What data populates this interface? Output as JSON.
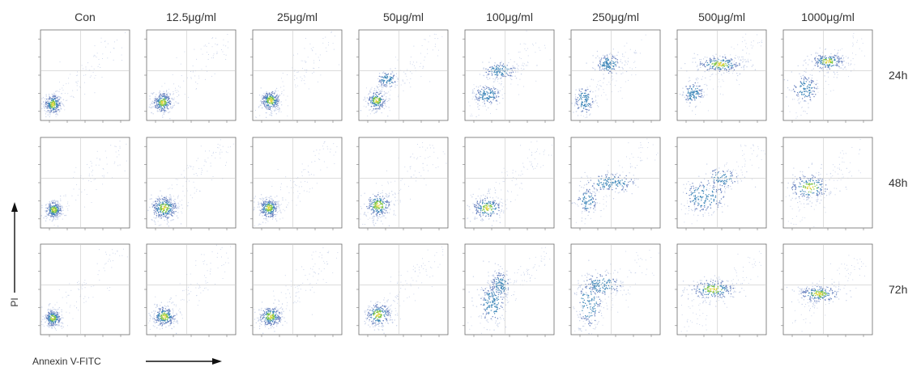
{
  "chart_data": {
    "type": "scatter",
    "plot_kind": "flow-cytometry-density-grid",
    "columns": [
      "Con",
      "12.5μg/ml",
      "25μg/ml",
      "50μg/ml",
      "100μg/ml",
      "250μg/ml",
      "500μg/ml",
      "1000μg/ml"
    ],
    "rows": [
      "24h",
      "48h",
      "72h"
    ],
    "xlabel": "Annexin V-FITC",
    "ylabel": "PI",
    "axis_scale": "log",
    "xlim": [
      1,
      100000
    ],
    "ylim": [
      1,
      100000
    ],
    "tick_values": [
      10,
      100,
      1000,
      10000,
      100000
    ],
    "gate_fraction": [
      0.45,
      0.55
    ],
    "panels": [
      [
        {
          "populations": [
            {
              "x": 0.14,
              "y": 0.18,
              "sx": 0.05,
              "sy": 0.06,
              "w": 1.0
            }
          ],
          "diag": 0.3
        },
        {
          "populations": [
            {
              "x": 0.18,
              "y": 0.2,
              "sx": 0.06,
              "sy": 0.06,
              "w": 1.0
            }
          ],
          "diag": 0.3
        },
        {
          "populations": [
            {
              "x": 0.2,
              "y": 0.22,
              "sx": 0.06,
              "sy": 0.06,
              "w": 1.0
            }
          ],
          "diag": 0.35
        },
        {
          "populations": [
            {
              "x": 0.2,
              "y": 0.22,
              "sx": 0.06,
              "sy": 0.06,
              "w": 0.8
            },
            {
              "x": 0.32,
              "y": 0.45,
              "sx": 0.06,
              "sy": 0.05,
              "w": 0.4
            }
          ],
          "diag": 0.35
        },
        {
          "populations": [
            {
              "x": 0.25,
              "y": 0.28,
              "sx": 0.08,
              "sy": 0.06,
              "w": 0.6
            },
            {
              "x": 0.4,
              "y": 0.55,
              "sx": 0.1,
              "sy": 0.05,
              "w": 0.6
            }
          ],
          "diag": 0.3
        },
        {
          "populations": [
            {
              "x": 0.15,
              "y": 0.22,
              "sx": 0.06,
              "sy": 0.08,
              "w": 0.5
            },
            {
              "x": 0.42,
              "y": 0.62,
              "sx": 0.08,
              "sy": 0.06,
              "w": 0.6
            }
          ],
          "diag": 0.3
        },
        {
          "populations": [
            {
              "x": 0.18,
              "y": 0.3,
              "sx": 0.06,
              "sy": 0.07,
              "w": 0.5
            },
            {
              "x": 0.48,
              "y": 0.62,
              "sx": 0.14,
              "sy": 0.05,
              "w": 0.9
            }
          ],
          "diag": 0.25
        },
        {
          "populations": [
            {
              "x": 0.25,
              "y": 0.35,
              "sx": 0.08,
              "sy": 0.08,
              "w": 0.5
            },
            {
              "x": 0.5,
              "y": 0.65,
              "sx": 0.1,
              "sy": 0.05,
              "w": 0.8
            }
          ],
          "diag": 0.25
        }
      ],
      [
        {
          "populations": [
            {
              "x": 0.15,
              "y": 0.2,
              "sx": 0.05,
              "sy": 0.05,
              "w": 1.0
            }
          ],
          "diag": 0.25
        },
        {
          "populations": [
            {
              "x": 0.2,
              "y": 0.22,
              "sx": 0.08,
              "sy": 0.07,
              "w": 1.2
            }
          ],
          "diag": 0.45
        },
        {
          "populations": [
            {
              "x": 0.18,
              "y": 0.22,
              "sx": 0.06,
              "sy": 0.06,
              "w": 1.0
            }
          ],
          "diag": 0.35
        },
        {
          "populations": [
            {
              "x": 0.22,
              "y": 0.25,
              "sx": 0.08,
              "sy": 0.07,
              "w": 0.9
            }
          ],
          "diag": 0.4
        },
        {
          "populations": [
            {
              "x": 0.25,
              "y": 0.22,
              "sx": 0.09,
              "sy": 0.07,
              "w": 0.8
            }
          ],
          "diag": 0.4
        },
        {
          "populations": [
            {
              "x": 0.18,
              "y": 0.3,
              "sx": 0.06,
              "sy": 0.08,
              "w": 0.4
            },
            {
              "x": 0.45,
              "y": 0.5,
              "sx": 0.15,
              "sy": 0.06,
              "w": 0.6
            }
          ],
          "diag": 0.3
        },
        {
          "populations": [
            {
              "x": 0.3,
              "y": 0.35,
              "sx": 0.14,
              "sy": 0.1,
              "w": 0.7
            },
            {
              "x": 0.5,
              "y": 0.55,
              "sx": 0.1,
              "sy": 0.06,
              "w": 0.4
            }
          ],
          "diag": 0.3
        },
        {
          "populations": [
            {
              "x": 0.3,
              "y": 0.45,
              "sx": 0.12,
              "sy": 0.08,
              "w": 0.8
            }
          ],
          "diag": 0.3
        }
      ],
      [
        {
          "populations": [
            {
              "x": 0.14,
              "y": 0.18,
              "sx": 0.05,
              "sy": 0.05,
              "w": 1.0
            }
          ],
          "diag": 0.3
        },
        {
          "populations": [
            {
              "x": 0.2,
              "y": 0.2,
              "sx": 0.07,
              "sy": 0.06,
              "w": 1.0
            }
          ],
          "diag": 0.35
        },
        {
          "populations": [
            {
              "x": 0.2,
              "y": 0.2,
              "sx": 0.07,
              "sy": 0.06,
              "w": 1.0
            }
          ],
          "diag": 0.35
        },
        {
          "populations": [
            {
              "x": 0.22,
              "y": 0.22,
              "sx": 0.08,
              "sy": 0.07,
              "w": 0.9
            }
          ],
          "diag": 0.35
        },
        {
          "populations": [
            {
              "x": 0.3,
              "y": 0.35,
              "sx": 0.08,
              "sy": 0.12,
              "w": 0.7
            },
            {
              "x": 0.4,
              "y": 0.55,
              "sx": 0.06,
              "sy": 0.08,
              "w": 0.6
            }
          ],
          "diag": 0.3
        },
        {
          "populations": [
            {
              "x": 0.2,
              "y": 0.35,
              "sx": 0.08,
              "sy": 0.15,
              "w": 0.6
            },
            {
              "x": 0.35,
              "y": 0.55,
              "sx": 0.12,
              "sy": 0.07,
              "w": 0.6
            }
          ],
          "diag": 0.3
        },
        {
          "populations": [
            {
              "x": 0.4,
              "y": 0.5,
              "sx": 0.14,
              "sy": 0.06,
              "w": 0.9
            }
          ],
          "diag": 0.25
        },
        {
          "populations": [
            {
              "x": 0.4,
              "y": 0.45,
              "sx": 0.12,
              "sy": 0.05,
              "w": 0.9
            }
          ],
          "diag": 0.25
        }
      ]
    ]
  },
  "colors": {
    "density_low": "#c9d3ea",
    "density_mid": "#6f87c2",
    "density_high": "#3d86b8",
    "density_peak": "#7cc442",
    "density_core": "#e3d43c"
  }
}
